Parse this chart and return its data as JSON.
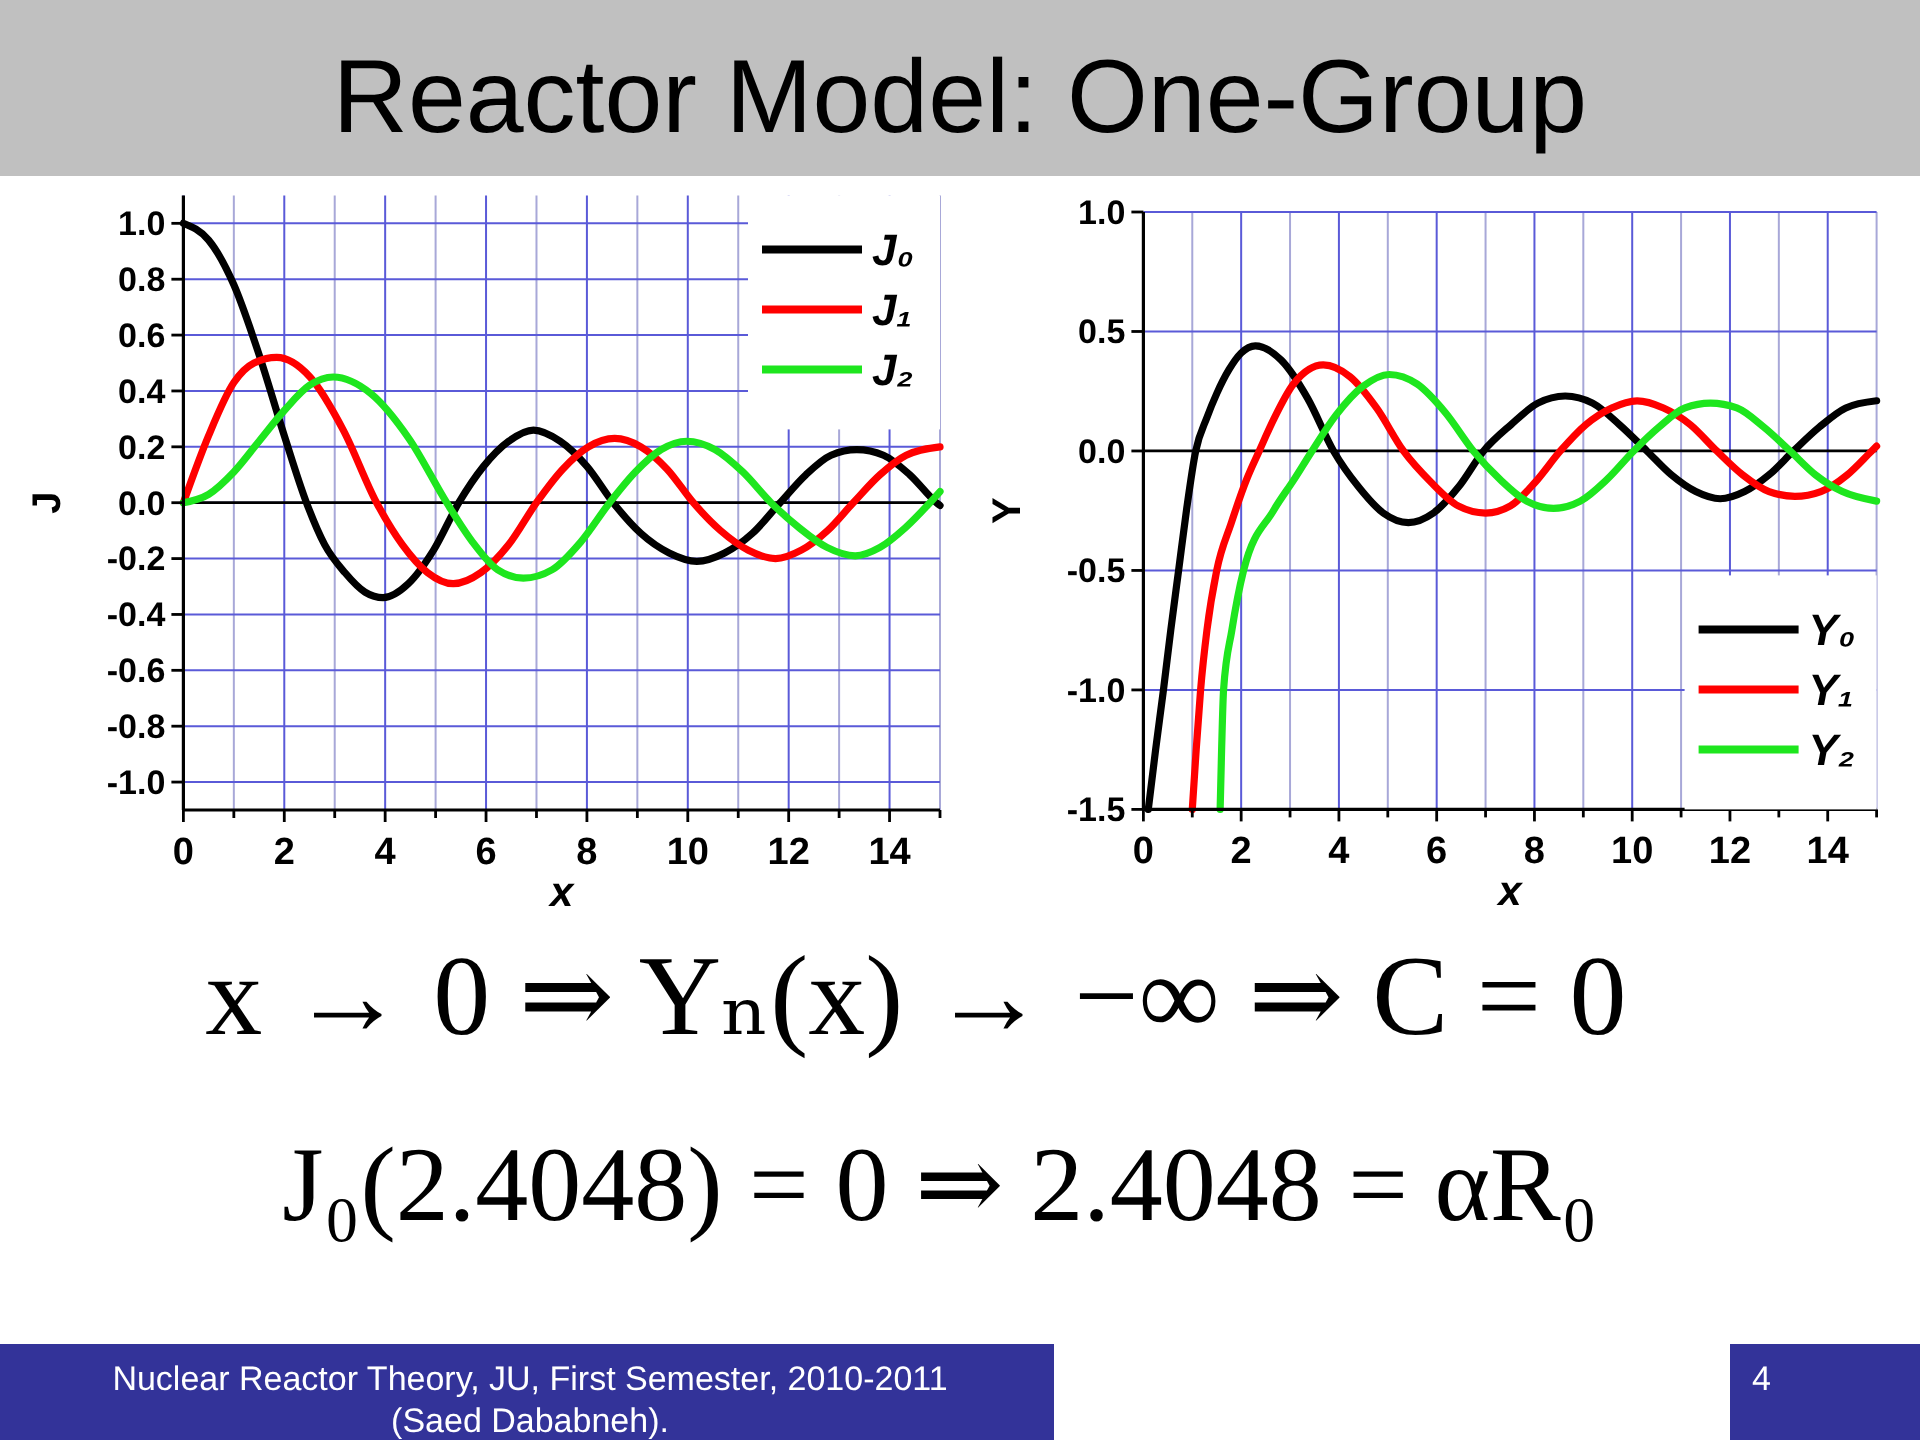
{
  "chart_data": [
    {
      "type": "line",
      "title": "Reactor Model: One-Group",
      "xlabel": "x",
      "ylabel": "J",
      "xlim": [
        0,
        15
      ],
      "ylim": [
        -1.1,
        1.1
      ],
      "xticks": [
        0,
        {
          "value": 1,
          "label": null
        },
        2,
        {
          "value": 3,
          "label": null
        },
        4,
        {
          "value": 5,
          "label": null
        },
        6,
        {
          "value": 7,
          "label": null
        },
        8,
        {
          "value": 9,
          "label": null
        },
        10,
        {
          "value": 11,
          "label": null
        },
        12,
        {
          "value": 13,
          "label": null
        },
        14,
        {
          "value": 15,
          "label": null
        }
      ],
      "yticks": [
        {
          "value": -1,
          "label": "-1.0"
        },
        -0.8,
        -0.6,
        -0.4,
        -0.2,
        {
          "value": 0,
          "label": "0.0"
        },
        0.2,
        0.4,
        0.6,
        0.8,
        {
          "value": 1,
          "label": "1.0"
        }
      ],
      "grid": true,
      "legend": "top right",
      "ref_lines": [
        {
          "axis": "y",
          "value": 0,
          "color": "#000000"
        }
      ],
      "series": [
        {
          "name": "J₀",
          "color": "#000000",
          "x": [
            0,
            0.5,
            1,
            1.5,
            2,
            2.44,
            2.8,
            3.2,
            3.6,
            3.96,
            4.46,
            4.96,
            5.46,
            5.95,
            6.45,
            6.94,
            7.47,
            8,
            8.52,
            9.07,
            9.63,
            10.18,
            10.73,
            11.28,
            11.83,
            12.34,
            12.84,
            13.35,
            13.88,
            14.4,
            14.93,
            15
          ],
          "values": [
            1,
            0.94,
            0.78,
            0.53,
            0.24,
            0,
            -0.15,
            -0.25,
            -0.32,
            -0.34,
            -0.29,
            -0.17,
            0,
            0.13,
            0.22,
            0.26,
            0.22,
            0.13,
            0,
            -0.11,
            -0.18,
            -0.21,
            -0.18,
            -0.11,
            0,
            0.1,
            0.17,
            0.19,
            0.17,
            0.1,
            0,
            -0.01
          ]
        },
        {
          "name": "J₁",
          "color": "#ff0000",
          "x": [
            0,
            0.5,
            1,
            1.4,
            1.85,
            2.51,
            3.17,
            3.83,
            4.34,
            4.84,
            5.35,
            5.9,
            6.45,
            7,
            7.52,
            8.03,
            8.55,
            9.07,
            9.59,
            10.11,
            10.65,
            11.2,
            11.74,
            12.25,
            12.77,
            13.28,
            13.81,
            14.33,
            15
          ],
          "values": [
            0,
            0.24,
            0.43,
            0.5,
            0.52,
            0.45,
            0.26,
            0,
            -0.15,
            -0.25,
            -0.29,
            -0.25,
            -0.15,
            0,
            0.12,
            0.2,
            0.23,
            0.2,
            0.12,
            0,
            -0.1,
            -0.17,
            -0.2,
            -0.17,
            -0.1,
            0,
            0.1,
            0.17,
            0.2
          ]
        },
        {
          "name": "J₂",
          "color": "#1ee61e",
          "x": [
            0,
            0.5,
            1,
            1.5,
            2,
            2.5,
            2.97,
            3.72,
            4.47,
            5.22,
            5.73,
            6.23,
            6.74,
            7.31,
            7.88,
            8.45,
            8.96,
            9.47,
            9.98,
            10.54,
            11.09,
            11.65,
            12.21,
            12.76,
            13.32,
            13.81,
            14.31,
            14.8,
            15
          ],
          "values": [
            0,
            0.03,
            0.11,
            0.22,
            0.33,
            0.42,
            0.45,
            0.39,
            0.23,
            0,
            -0.14,
            -0.24,
            -0.27,
            -0.24,
            -0.14,
            0,
            0.11,
            0.19,
            0.22,
            0.19,
            0.11,
            0,
            -0.09,
            -0.16,
            -0.19,
            -0.16,
            -0.09,
            0,
            0.04
          ]
        }
      ]
    },
    {
      "type": "line",
      "xlabel": "x",
      "ylabel": "Y",
      "xlim": [
        0,
        15
      ],
      "ylim": [
        -1.5,
        1
      ],
      "xticks": [
        0,
        {
          "value": 1,
          "label": null
        },
        2,
        {
          "value": 3,
          "label": null
        },
        4,
        {
          "value": 5,
          "label": null
        },
        6,
        {
          "value": 7,
          "label": null
        },
        8,
        {
          "value": 9,
          "label": null
        },
        10,
        {
          "value": 11,
          "label": null
        },
        12,
        {
          "value": 13,
          "label": null
        },
        14,
        {
          "value": 15,
          "label": null
        }
      ],
      "yticks": [
        -1.5,
        {
          "value": -1,
          "label": "-1.0"
        },
        -0.5,
        {
          "value": 0,
          "label": "0.0"
        },
        0.5,
        {
          "value": 1,
          "label": "1.0"
        }
      ],
      "grid": true,
      "legend": "bottom right",
      "ref_lines": [
        {
          "axis": "y",
          "value": 0,
          "color": "#000000"
        }
      ],
      "series": [
        {
          "name": "Y₀",
          "color": "#000000",
          "x": [
            0.1,
            0.25,
            0.41,
            0.56,
            0.72,
            0.88,
            1.07,
            1.3,
            1.5,
            1.75,
            2,
            2.29,
            2.82,
            3.36,
            3.89,
            4.4,
            4.91,
            5.42,
            5.93,
            6.45,
            6.96,
            7.52,
            8.07,
            8.63,
            9.19,
            9.74,
            10.3,
            10.8,
            11.3,
            11.8,
            12.3,
            12.8,
            13.3,
            13.83,
            14.37,
            15
          ],
          "values": [
            -1.5,
            -1.25,
            -1,
            -0.75,
            -0.5,
            -0.25,
            0,
            0.14,
            0.24,
            0.34,
            0.41,
            0.44,
            0.38,
            0.22,
            0,
            -0.15,
            -0.26,
            -0.3,
            -0.26,
            -0.15,
            0,
            0.11,
            0.2,
            0.23,
            0.2,
            0.11,
            0,
            -0.1,
            -0.17,
            -0.2,
            -0.17,
            -0.1,
            0,
            0.1,
            0.18,
            0.21
          ]
        },
        {
          "name": "Y₁",
          "color": "#ff0000",
          "x": [
            1,
            1.08,
            1.17,
            1.3,
            1.5,
            1.8,
            2.11,
            2.37,
            2.66,
            3.07,
            3.68,
            4.23,
            4.77,
            5.32,
            5.88,
            6.44,
            7,
            7.51,
            8.02,
            8.53,
            9.05,
            9.58,
            10.1,
            10.64,
            11.19,
            11.73,
            12.26,
            12.8,
            13.33,
            13.86,
            14.4,
            14.9,
            15
          ],
          "values": [
            -1.5,
            -1.25,
            -1,
            -0.75,
            -0.5,
            -0.3,
            -0.12,
            0,
            0.13,
            0.28,
            0.36,
            0.31,
            0.18,
            0,
            -0.13,
            -0.23,
            -0.26,
            -0.23,
            -0.13,
            0,
            0.11,
            0.18,
            0.21,
            0.18,
            0.11,
            0,
            -0.1,
            -0.17,
            -0.19,
            -0.17,
            -0.1,
            0,
            0.02
          ]
        },
        {
          "name": "Y₂",
          "color": "#1ee61e",
          "x": [
            1.57,
            1.6,
            1.64,
            1.81,
            2.05,
            2.66,
            3.08,
            3.45,
            3.94,
            4.49,
            5.03,
            5.6,
            6.18,
            6.75,
            7.3,
            7.84,
            8.39,
            8.94,
            9.48,
            10.03,
            10.55,
            11.08,
            11.6,
            12.14,
            12.69,
            13.23,
            13.75,
            14.3,
            15
          ],
          "values": [
            -1.5,
            -1.25,
            -1,
            -0.75,
            -0.5,
            -0.25,
            -0.12,
            0,
            0.15,
            0.27,
            0.32,
            0.28,
            0.16,
            0,
            -0.12,
            -0.21,
            -0.24,
            -0.21,
            -0.12,
            0,
            0.1,
            0.18,
            0.2,
            0.18,
            0.1,
            0,
            -0.1,
            -0.17,
            -0.21
          ]
        }
      ],
      "annotations": [
        "x → 0 ⇒ Yₙ(x) → −∞ ⇒ C = 0",
        "J₀(2.4048) = 0 ⇒ 2.4048 = αR₀",
        "Nuclear Reactor Theory, JU, First Semester, 2010-2011",
        "(Saed Dababneh).",
        "4"
      ]
    }
  ]
}
